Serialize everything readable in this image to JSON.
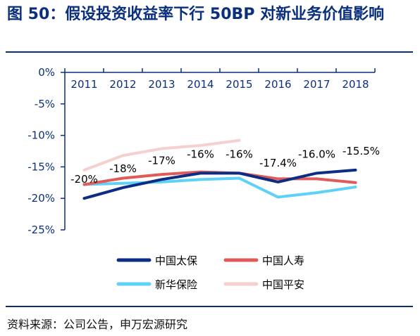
{
  "title": "图 50：假设投资收益率下行 50BP 对新业务价值影响",
  "source": "资料来源：公司公告，申万宏源研究",
  "chart_data": {
    "type": "line",
    "x": [
      "2011",
      "2012",
      "2013",
      "2014",
      "2015",
      "2016",
      "2017",
      "2018"
    ],
    "ylim": [
      -25,
      0
    ],
    "yticks": [
      0,
      -5,
      -10,
      -15,
      -20,
      -25
    ],
    "ytick_labels": [
      "0%",
      "-5%",
      "-10%",
      "-15%",
      "-20%",
      "-25%"
    ],
    "y_unit": "%",
    "series": [
      {
        "name": "中国太保",
        "color": "#0b2d84",
        "values": [
          -20.0,
          -18.3,
          -17.0,
          -16.0,
          -16.0,
          -17.4,
          -16.0,
          -15.5
        ]
      },
      {
        "name": "中国人寿",
        "color": "#e05a5a",
        "values": [
          -17.8,
          -16.8,
          -16.2,
          -15.8,
          -16.0,
          -16.9,
          -16.9,
          -17.5
        ]
      },
      {
        "name": "新华保险",
        "color": "#5ed1f7",
        "values": [
          -17.8,
          -17.6,
          -17.4,
          -17.0,
          -16.8,
          -19.8,
          -19.1,
          -18.2
        ]
      },
      {
        "name": "中国平安",
        "color": "#f6d0cf",
        "values": [
          -15.5,
          -13.2,
          -12.1,
          -11.6,
          -10.8,
          null,
          null,
          null
        ]
      }
    ],
    "data_labels": [
      "-20%",
      "-18%",
      "-17%",
      "-16%",
      "-16%",
      "-17.4%",
      "-16.0%",
      "-15.5%"
    ],
    "grid": false,
    "legend_position": "bottom"
  }
}
